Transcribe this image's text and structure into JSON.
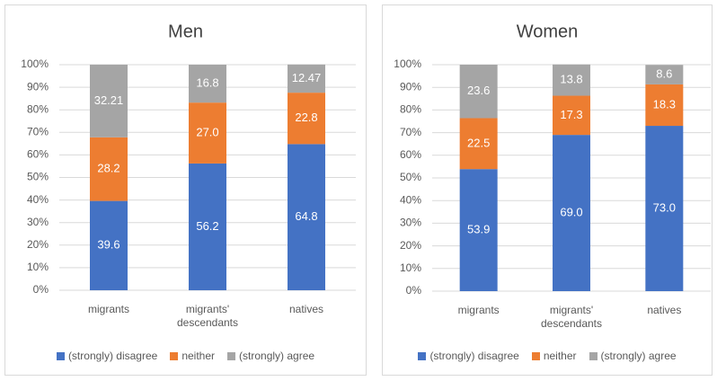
{
  "chart_data": [
    {
      "type": "stacked_bar",
      "title": "Men",
      "categories": [
        "migrants",
        "migrants' descendants",
        "natives"
      ],
      "series": [
        {
          "name": "(strongly) disagree",
          "color": "#4472c4",
          "values": [
            39.6,
            56.2,
            64.8
          ],
          "value_labels": [
            "39.6",
            "56.2",
            "64.8"
          ]
        },
        {
          "name": "neither",
          "color": "#ed7d31",
          "values": [
            28.2,
            27.0,
            22.8
          ],
          "value_labels": [
            "28.2",
            "27.0",
            "22.8"
          ]
        },
        {
          "name": "(strongly) agree",
          "color": "#a5a5a5",
          "values": [
            32.21,
            16.8,
            12.47
          ],
          "value_labels": [
            "32.21",
            "16.8",
            "12.47"
          ]
        }
      ],
      "ylim": [
        0,
        100
      ],
      "yticks": [
        {
          "value": 0,
          "label": "0%"
        },
        {
          "value": 10,
          "label": "10%"
        },
        {
          "value": 20,
          "label": "20%"
        },
        {
          "value": 30,
          "label": "30%"
        },
        {
          "value": 40,
          "label": "40%"
        },
        {
          "value": 50,
          "label": "50%"
        },
        {
          "value": 60,
          "label": "60%"
        },
        {
          "value": 70,
          "label": "70%"
        },
        {
          "value": 80,
          "label": "80%"
        },
        {
          "value": 90,
          "label": "90%"
        },
        {
          "value": 100,
          "label": "100%"
        }
      ],
      "grid": true,
      "legend": "bottom"
    },
    {
      "type": "stacked_bar",
      "title": "Women",
      "categories": [
        "migrants",
        "migrants' descendants",
        "natives"
      ],
      "series": [
        {
          "name": "(strongly) disagree",
          "color": "#4472c4",
          "values": [
            53.9,
            69.0,
            73.0
          ],
          "value_labels": [
            "53.9",
            "69.0",
            "73.0"
          ]
        },
        {
          "name": "neither",
          "color": "#ed7d31",
          "values": [
            22.5,
            17.3,
            18.3
          ],
          "value_labels": [
            "22.5",
            "17.3",
            "18.3"
          ]
        },
        {
          "name": "(strongly) agree",
          "color": "#a5a5a5",
          "values": [
            23.6,
            13.8,
            8.6
          ],
          "value_labels": [
            "23.6",
            "13.8",
            "8.6"
          ]
        }
      ],
      "ylim": [
        0,
        100
      ],
      "yticks": [
        {
          "value": 0,
          "label": "0%"
        },
        {
          "value": 10,
          "label": "10%"
        },
        {
          "value": 20,
          "label": "20%"
        },
        {
          "value": 30,
          "label": "30%"
        },
        {
          "value": 40,
          "label": "40%"
        },
        {
          "value": 50,
          "label": "50%"
        },
        {
          "value": 60,
          "label": "60%"
        },
        {
          "value": 70,
          "label": "70%"
        },
        {
          "value": 80,
          "label": "80%"
        },
        {
          "value": 90,
          "label": "90%"
        },
        {
          "value": 100,
          "label": "100%"
        }
      ],
      "grid": true,
      "legend": "bottom"
    }
  ]
}
